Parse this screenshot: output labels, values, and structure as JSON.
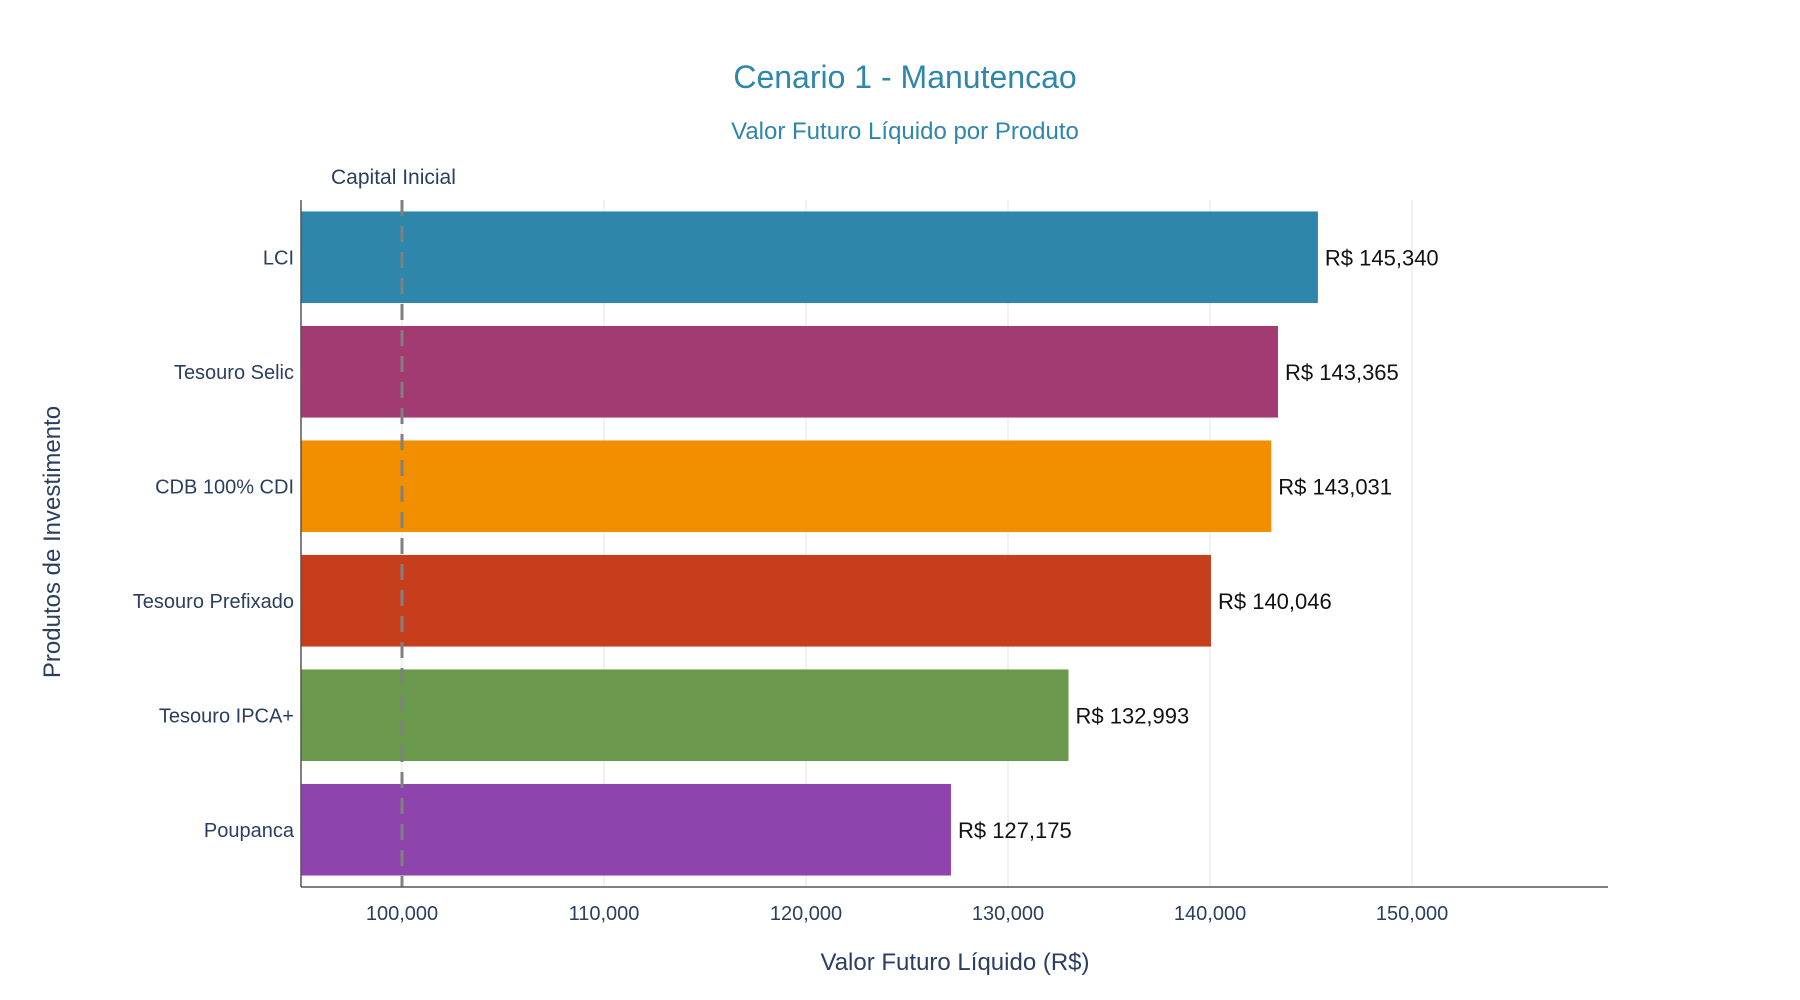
{
  "chart_data": {
    "type": "bar",
    "orientation": "horizontal",
    "title": "Cenario 1 - Manutencao",
    "subtitle": "Valor Futuro Líquido por Produto",
    "xlabel": "Valor Futuro Líquido (R$)",
    "ylabel": "Produtos de Investimento",
    "categories": [
      "LCI",
      "Tesouro Selic",
      "CDB 100% CDI",
      "Tesouro Prefixado",
      "Tesouro IPCA+",
      "Poupanca"
    ],
    "values": [
      145340,
      143365,
      143031,
      140046,
      132993,
      127175
    ],
    "data_labels": [
      "R$ 145,340",
      "R$ 143,365",
      "R$ 143,031",
      "R$ 140,046",
      "R$ 132,993",
      "R$ 127,175"
    ],
    "colors": [
      "#2e86ab",
      "#a23b72",
      "#f18f01",
      "#c73e1d",
      "#6a994e",
      "#8e44ad"
    ],
    "xlim": [
      95000,
      159700
    ],
    "xticks": [
      100000,
      110000,
      120000,
      130000,
      140000,
      150000
    ],
    "xtick_labels": [
      "100,000",
      "110,000",
      "120,000",
      "130,000",
      "140,000",
      "150,000"
    ],
    "grid": true,
    "reference_line": {
      "value": 100000,
      "label": "Capital Inicial",
      "style": "dashed",
      "color": "#808080"
    }
  }
}
